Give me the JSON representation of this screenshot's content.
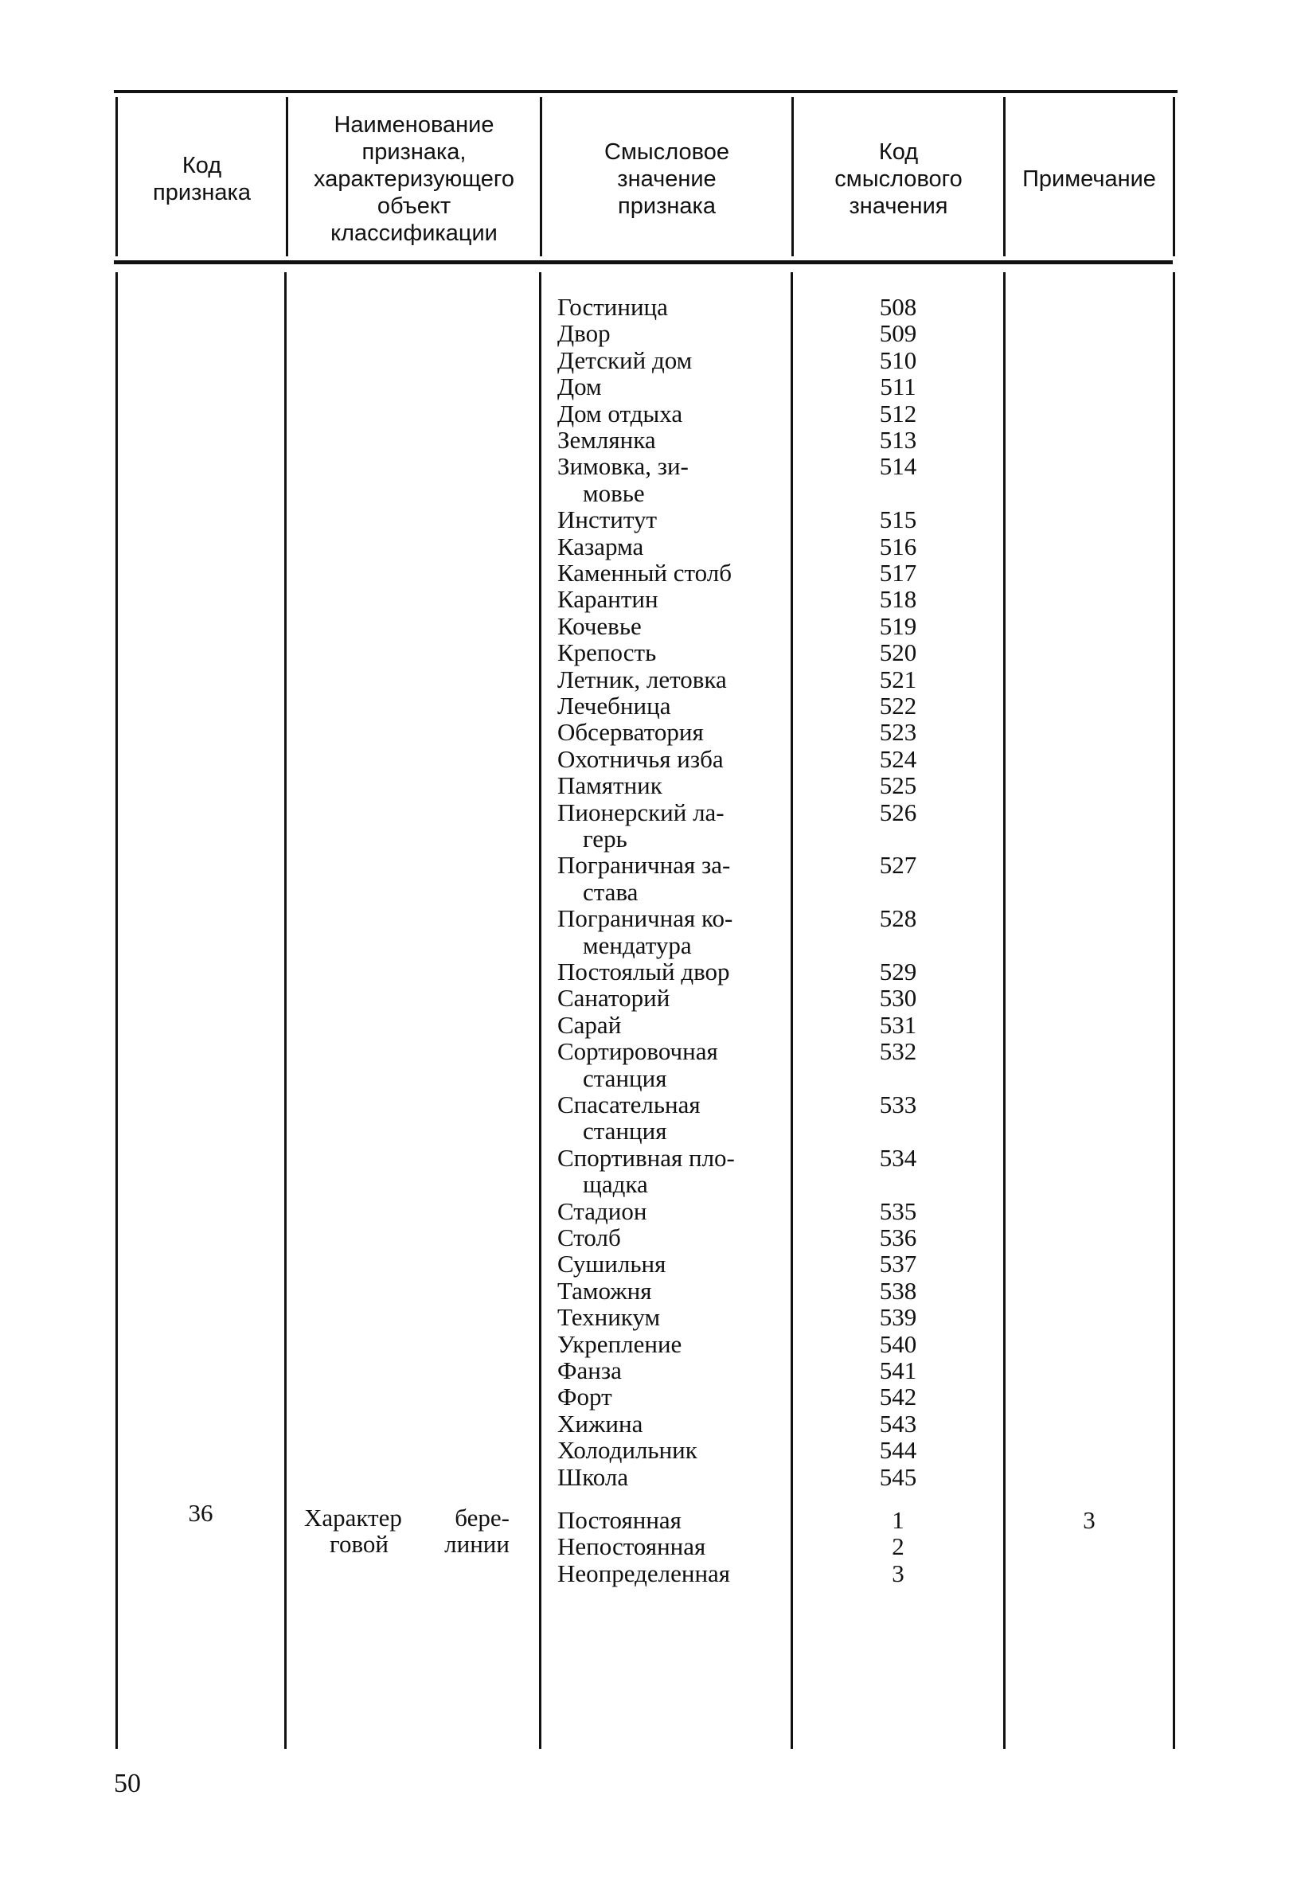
{
  "table": {
    "headers": {
      "col1": [
        "Код",
        "признака"
      ],
      "col2": [
        "Наименование",
        "признака,",
        "характеризующего",
        "объект",
        "классификации"
      ],
      "col3": [
        "Смысловое",
        "значение",
        "признака"
      ],
      "col4": [
        "Код",
        "смыслового",
        "значения"
      ],
      "col5": [
        "Примечание"
      ]
    },
    "continued_values": [
      {
        "lines": [
          "Гостиница"
        ],
        "code": "508"
      },
      {
        "lines": [
          "Двор"
        ],
        "code": "509"
      },
      {
        "lines": [
          "Детский дом"
        ],
        "code": "510"
      },
      {
        "lines": [
          "Дом"
        ],
        "code": "511"
      },
      {
        "lines": [
          "Дом отдыха"
        ],
        "code": "512"
      },
      {
        "lines": [
          "Землянка"
        ],
        "code": "513"
      },
      {
        "lines": [
          "Зимовка, зи-",
          "мовье"
        ],
        "code": "514"
      },
      {
        "lines": [
          "Институт"
        ],
        "code": "515"
      },
      {
        "lines": [
          "Казарма"
        ],
        "code": "516"
      },
      {
        "lines": [
          "Каменный столб"
        ],
        "code": "517"
      },
      {
        "lines": [
          "Карантин"
        ],
        "code": "518"
      },
      {
        "lines": [
          "Кочевье"
        ],
        "code": "519"
      },
      {
        "lines": [
          "Крепость"
        ],
        "code": "520"
      },
      {
        "lines": [
          "Летник, летовка"
        ],
        "code": "521"
      },
      {
        "lines": [
          "Лечебница"
        ],
        "code": "522"
      },
      {
        "lines": [
          "Обсерватория"
        ],
        "code": "523"
      },
      {
        "lines": [
          "Охотничья изба"
        ],
        "code": "524"
      },
      {
        "lines": [
          "Памятник"
        ],
        "code": "525"
      },
      {
        "lines": [
          "Пионерский ла-",
          "герь"
        ],
        "code": "526"
      },
      {
        "lines": [
          "Пограничная за-",
          "става"
        ],
        "code": "527"
      },
      {
        "lines": [
          "Пограничная ко-",
          "мендатура"
        ],
        "code": "528"
      },
      {
        "lines": [
          "Постоялый двор"
        ],
        "code": "529"
      },
      {
        "lines": [
          "Санаторий"
        ],
        "code": "530"
      },
      {
        "lines": [
          "Сарай"
        ],
        "code": "531"
      },
      {
        "lines": [
          "Сортировочная",
          "станция"
        ],
        "code": "532"
      },
      {
        "lines": [
          "Спасательная",
          "станция"
        ],
        "code": "533"
      },
      {
        "lines": [
          "Спортивная пло-",
          "щадка"
        ],
        "code": "534"
      },
      {
        "lines": [
          "Стадион"
        ],
        "code": "535"
      },
      {
        "lines": [
          "Столб"
        ],
        "code": "536"
      },
      {
        "lines": [
          "Сушильня"
        ],
        "code": "537"
      },
      {
        "lines": [
          "Таможня"
        ],
        "code": "538"
      },
      {
        "lines": [
          "Техникум"
        ],
        "code": "539"
      },
      {
        "lines": [
          "Укрепление"
        ],
        "code": "540"
      },
      {
        "lines": [
          "Фанза"
        ],
        "code": "541"
      },
      {
        "lines": [
          "Форт"
        ],
        "code": "542"
      },
      {
        "lines": [
          "Хижина"
        ],
        "code": "543"
      },
      {
        "lines": [
          "Холодильник"
        ],
        "code": "544"
      },
      {
        "lines": [
          "Школа"
        ],
        "code": "545"
      }
    ],
    "row_36": {
      "code": "36",
      "name": [
        "Характер бере-",
        "говой линии"
      ],
      "note": "3",
      "values": [
        {
          "lines": [
            "Постоянная"
          ],
          "code": "1"
        },
        {
          "lines": [
            "Непостоянная"
          ],
          "code": "2"
        },
        {
          "lines": [
            "Неопределенная"
          ],
          "code": "3"
        }
      ]
    }
  },
  "page_number": "50"
}
